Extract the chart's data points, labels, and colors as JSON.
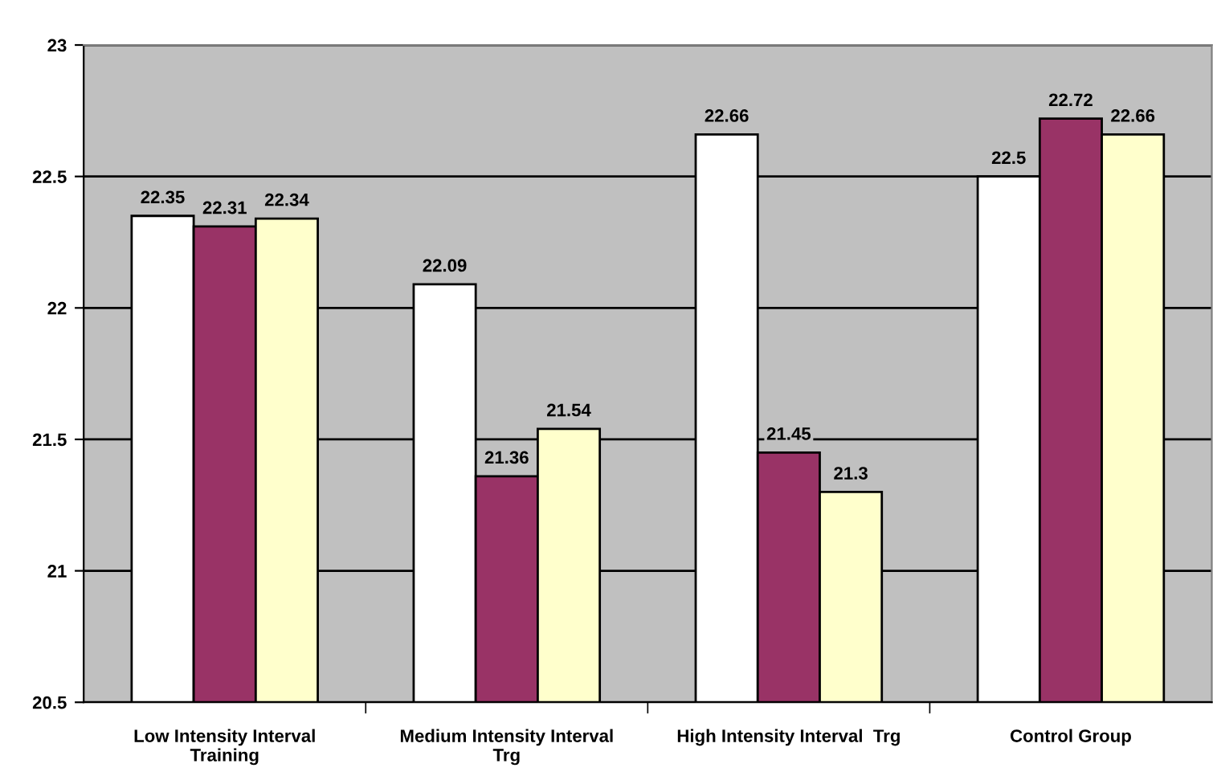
{
  "chart_data": {
    "type": "bar",
    "categories": [
      "Low Intensity Interval\nTraining",
      "Medium Intensity Interval\nTrg",
      "High Intensity Interval  Trg",
      "Control Group"
    ],
    "series": [
      {
        "color": "#ffffff",
        "values": [
          22.35,
          22.09,
          22.66,
          22.5
        ]
      },
      {
        "color": "#993366",
        "values": [
          22.31,
          21.36,
          21.45,
          22.72
        ]
      },
      {
        "color": "#ffffcc",
        "values": [
          22.34,
          21.54,
          21.3,
          22.66
        ]
      }
    ],
    "ylim": [
      20.5,
      23
    ],
    "yticks": [
      20.5,
      21,
      21.5,
      22,
      22.5,
      23
    ],
    "grid": "y",
    "legend": false,
    "data_labels": true
  }
}
